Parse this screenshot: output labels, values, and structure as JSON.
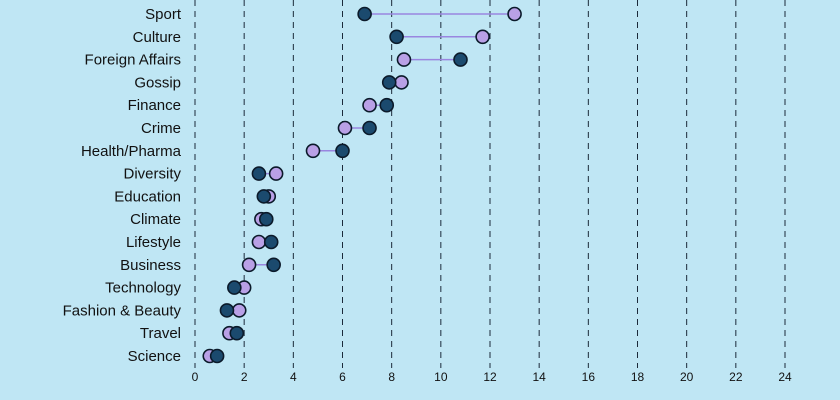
{
  "chart_data": {
    "type": "scatter",
    "subtype": "dumbbell",
    "categories": [
      "Sport",
      "Culture",
      "Foreign Affairs",
      "Gossip",
      "Finance",
      "Crime",
      "Health/Pharma",
      "Diversity",
      "Education",
      "Climate",
      "Lifestyle",
      "Business",
      "Technology",
      "Fashion & Beauty",
      "Travel",
      "Science"
    ],
    "series": [
      {
        "values": [
          6.9,
          8.2,
          10.8,
          7.9,
          7.8,
          7.1,
          6.0,
          2.6,
          2.8,
          2.9,
          3.1,
          3.2,
          1.6,
          1.3,
          1.7,
          0.9
        ]
      },
      {
        "values": [
          13.0,
          11.7,
          8.5,
          8.4,
          7.1,
          6.1,
          4.8,
          3.3,
          3.0,
          2.7,
          2.6,
          2.2,
          2.0,
          1.8,
          1.4,
          0.6
        ]
      }
    ],
    "colors": {
      "background": "#bfe6f4",
      "series_a": "#1b4a6e",
      "series_b": "#b9a0e6",
      "connector": "#9a86e0",
      "grid": "#1b2a3a"
    },
    "xticks": [
      0,
      2,
      4,
      6,
      8,
      10,
      12,
      14,
      16,
      18,
      20,
      22,
      24
    ],
    "xlim": [
      0,
      24
    ],
    "xlabel": "",
    "grid": "vertical dashed"
  }
}
